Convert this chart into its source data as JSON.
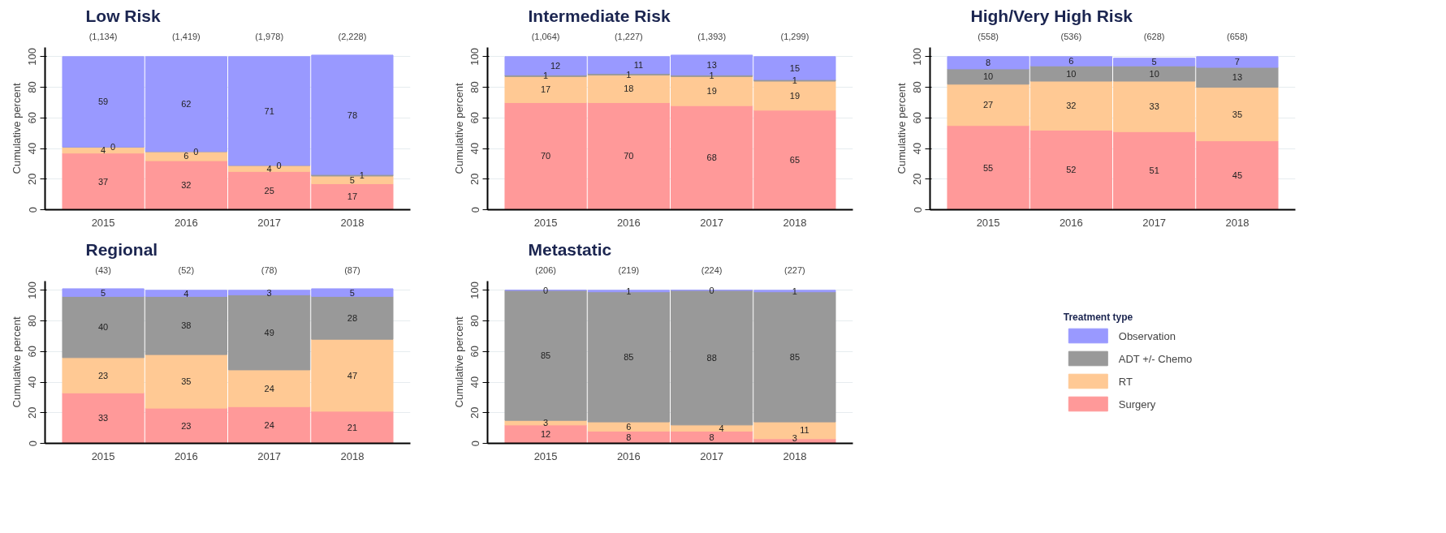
{
  "chart_data": [
    {
      "type": "bar",
      "title": "Low Risk",
      "legend": "right",
      "legend_title": "Treatment type",
      "ylabel": "Cumulative percent",
      "categories": [
        "2015",
        "2016",
        "2017",
        "2018"
      ],
      "stacked": true,
      "data_labels": true,
      "grid": "y",
      "ylim": [
        0,
        106
      ],
      "yticks": [
        0,
        20,
        40,
        60,
        80,
        100
      ],
      "annotations": [
        "(1,134)",
        "(1,419)",
        "(1,978)",
        "(2,228)"
      ],
      "series": [
        {
          "name": "Surgery",
          "color": "#ff9999",
          "values": [
            37,
            32,
            25,
            17
          ]
        },
        {
          "name": "RT",
          "color": "#ffc994",
          "values": [
            4,
            6,
            4,
            5
          ]
        },
        {
          "name": "ADT +/- Chemo",
          "color": "#999999",
          "values": [
            0,
            0,
            0,
            1
          ]
        },
        {
          "name": "Observation",
          "color": "#9999ff",
          "values": [
            59,
            62,
            71,
            78
          ]
        }
      ]
    },
    {
      "type": "bar",
      "title": "Intermediate Risk",
      "ylabel": "Cumulative percent",
      "categories": [
        "2015",
        "2016",
        "2017",
        "2018"
      ],
      "stacked": true,
      "data_labels": true,
      "grid": "y",
      "ylim": [
        0,
        106
      ],
      "yticks": [
        0,
        20,
        40,
        60,
        80,
        100
      ],
      "annotations": [
        "(1,064)",
        "(1,227)",
        "(1,393)",
        "(1,299)"
      ],
      "series": [
        {
          "color": "#ff9999",
          "values": [
            70,
            70,
            68,
            65
          ]
        },
        {
          "color": "#ffc994",
          "values": [
            17,
            18,
            19,
            19
          ]
        },
        {
          "color": "#999999",
          "values": [
            1,
            1,
            1,
            1
          ]
        },
        {
          "color": "#9999ff",
          "values": [
            12,
            11,
            13,
            15
          ]
        }
      ]
    },
    {
      "type": "bar",
      "title": "High/Very High Risk",
      "ylabel": "Cumulative percent",
      "categories": [
        "2015",
        "2016",
        "2017",
        "2018"
      ],
      "stacked": true,
      "data_labels": true,
      "grid": "y",
      "ylim": [
        0,
        106
      ],
      "yticks": [
        0,
        20,
        40,
        60,
        80,
        100
      ],
      "annotations": [
        "(558)",
        "(536)",
        "(628)",
        "(658)"
      ],
      "series": [
        {
          "color": "#ff9999",
          "values": [
            55,
            52,
            51,
            45
          ]
        },
        {
          "color": "#ffc994",
          "values": [
            27,
            32,
            33,
            35
          ]
        },
        {
          "color": "#999999",
          "values": [
            10,
            10,
            10,
            13
          ]
        },
        {
          "color": "#9999ff",
          "values": [
            8,
            6,
            5,
            7
          ]
        }
      ]
    },
    {
      "type": "bar",
      "title": "Regional",
      "ylabel": "Cumulative percent",
      "categories": [
        "2015",
        "2016",
        "2017",
        "2018"
      ],
      "stacked": true,
      "data_labels": true,
      "grid": "y",
      "ylim": [
        0,
        106
      ],
      "yticks": [
        0,
        20,
        40,
        60,
        80,
        100
      ],
      "annotations": [
        "(43)",
        "(52)",
        "(78)",
        "(87)"
      ],
      "series": [
        {
          "color": "#ff9999",
          "values": [
            33,
            23,
            24,
            21
          ]
        },
        {
          "color": "#ffc994",
          "values": [
            23,
            35,
            24,
            47
          ]
        },
        {
          "color": "#999999",
          "values": [
            40,
            38,
            49,
            28
          ]
        },
        {
          "color": "#9999ff",
          "values": [
            5,
            4,
            3,
            5
          ]
        }
      ]
    },
    {
      "type": "bar",
      "title": "Metastatic",
      "ylabel": "Cumulative percent",
      "categories": [
        "2015",
        "2016",
        "2017",
        "2018"
      ],
      "stacked": true,
      "data_labels": true,
      "grid": "y",
      "ylim": [
        0,
        106
      ],
      "yticks": [
        0,
        20,
        40,
        60,
        80,
        100
      ],
      "annotations": [
        "(206)",
        "(219)",
        "(224)",
        "(227)"
      ],
      "series": [
        {
          "color": "#ff9999",
          "values": [
            12,
            8,
            8,
            3
          ]
        },
        {
          "color": "#ffc994",
          "values": [
            3,
            6,
            4,
            11
          ]
        },
        {
          "color": "#999999",
          "values": [
            85,
            85,
            88,
            85
          ]
        },
        {
          "color": "#9999ff",
          "values": [
            0,
            1,
            0,
            1
          ]
        }
      ]
    }
  ]
}
